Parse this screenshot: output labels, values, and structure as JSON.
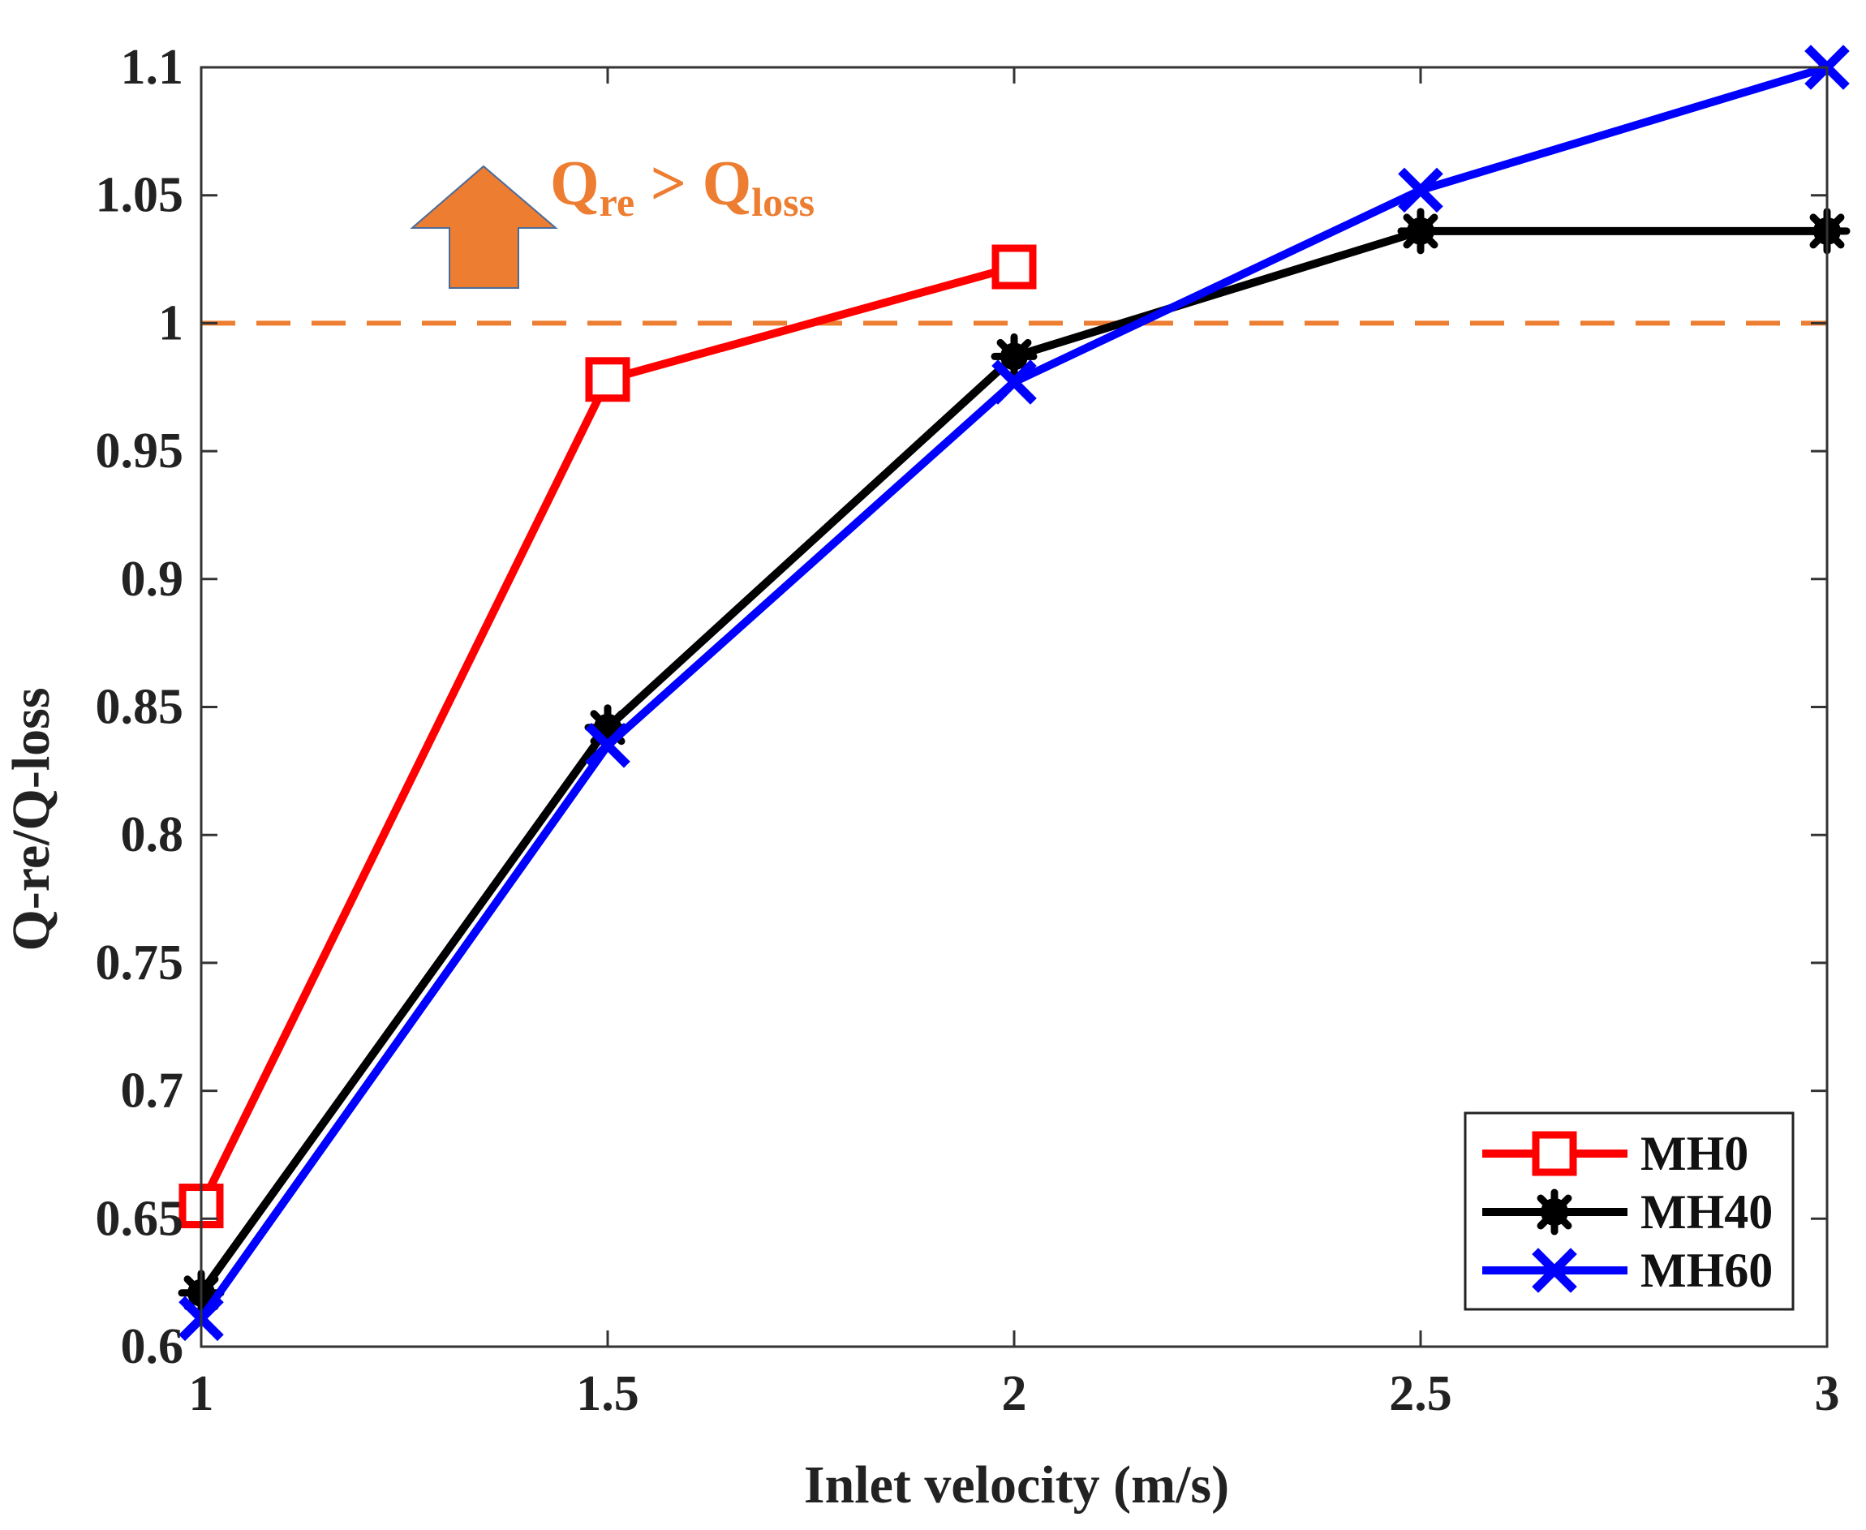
{
  "chart_data": {
    "type": "line",
    "title": "",
    "xlabel": "Inlet velocity (m/s)",
    "ylabel": "Q-re/Q-loss",
    "xlim": [
      1,
      3
    ],
    "ylim": [
      0.6,
      1.1
    ],
    "xticks": [
      1,
      1.5,
      2,
      2.5,
      3
    ],
    "xtick_labels": [
      "1",
      "1.5",
      "2",
      "2.5",
      "3"
    ],
    "yticks": [
      0.6,
      0.65,
      0.7,
      0.75,
      0.8,
      0.85,
      0.9,
      0.95,
      1,
      1.05,
      1.1
    ],
    "ytick_labels": [
      "0.6",
      "0.65",
      "0.7",
      "0.75",
      "0.8",
      "0.85",
      "0.9",
      "0.95",
      "1",
      "1.05",
      "1.1"
    ],
    "grid": false,
    "legend_position": "bottom-right",
    "series": [
      {
        "name": "MH0",
        "color": "#ff0000",
        "marker": "square",
        "x": [
          1,
          1.5,
          2
        ],
        "values": [
          0.655,
          0.978,
          1.022
        ]
      },
      {
        "name": "MH40",
        "color": "#000000",
        "marker": "asterisk",
        "x": [
          1,
          1.5,
          2,
          2.5,
          3
        ],
        "values": [
          0.621,
          0.842,
          0.987,
          1.036,
          1.036
        ]
      },
      {
        "name": "MH60",
        "color": "#0000ff",
        "marker": "x",
        "x": [
          1,
          1.5,
          2,
          2.5,
          3
        ],
        "values": [
          0.611,
          0.835,
          0.977,
          1.052,
          1.1
        ]
      }
    ],
    "reference_line": {
      "y": 1,
      "color": "#ed7d31",
      "style": "dashed"
    },
    "annotation": {
      "color": "#ed7d31",
      "q1": "Q",
      "sub1": "re",
      "op": " > ",
      "q2": "Q",
      "sub2": "loss",
      "arrow": "up-arrow"
    }
  }
}
